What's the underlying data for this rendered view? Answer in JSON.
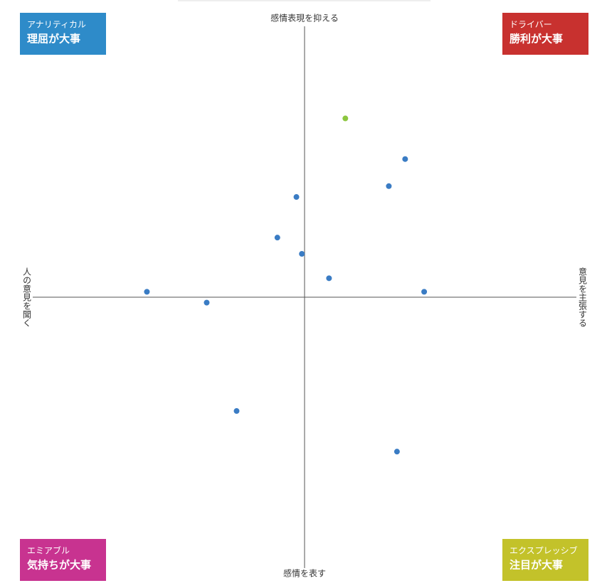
{
  "chart_data": {
    "type": "scatter",
    "axis_labels": {
      "top": "感情表現を抑える",
      "bottom": "感情を表す",
      "left": "人の意見を聞く",
      "right": "意見を主張する"
    },
    "quadrants": [
      {
        "corner": "top-left",
        "subtitle": "アナリティカル",
        "title": "理屈が大事",
        "color": "#2e8bc9"
      },
      {
        "corner": "top-right",
        "subtitle": "ドライバー",
        "title": "勝利が大事",
        "color": "#c8312f"
      },
      {
        "corner": "bottom-left",
        "subtitle": "エミアブル",
        "title": "気持ちが大事",
        "color": "#c83390"
      },
      {
        "corner": "bottom-right",
        "subtitle": "エクスプレッシブ",
        "title": "注目が大事",
        "color": "#c3c22a"
      }
    ],
    "x": [
      15,
      37,
      31,
      -3,
      -10,
      -1,
      9,
      44,
      -58,
      -36,
      -25,
      34
    ],
    "values": [
      66,
      51,
      41,
      37,
      22,
      16,
      7,
      2,
      2,
      -2,
      -42,
      -57
    ],
    "colors": [
      "#8cc63f",
      "#3a7cc4",
      "#3a7cc4",
      "#3a7cc4",
      "#3a7cc4",
      "#3a7cc4",
      "#3a7cc4",
      "#3a7cc4",
      "#3a7cc4",
      "#3a7cc4",
      "#3a7cc4",
      "#3a7cc4"
    ],
    "xlim": [
      -100,
      100
    ],
    "ylim": [
      -100,
      100
    ]
  }
}
